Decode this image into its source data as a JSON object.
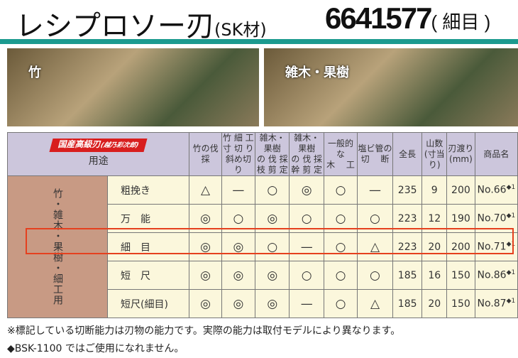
{
  "title": "レシプロソー刃",
  "title_material": "(SK材)",
  "code": "6641577",
  "code_suffix": "( 細目 )",
  "photos": [
    {
      "label": "竹"
    },
    {
      "label": "雑木・果樹"
    }
  ],
  "table": {
    "brand": "国産高級刃",
    "brand_sub": "(越乃彩次郎)",
    "use_label": "用途",
    "headers": [
      "竹の伐採",
      "竹 細 工\n寸 切 り\n斜め切り",
      "雑木・果樹\nの 伐 採\n枝 剪 定",
      "雑木・果樹\nの 伐 採\n幹 剪 定",
      "一般的な\n木　 工",
      "塩ビ管の\n切　 断",
      "全長",
      "山数\n(寸当り)",
      "刃渡り\n(mm)",
      "商品名"
    ],
    "side_label": "竹・雑木・果樹・細工用",
    "rows": [
      {
        "name": "粗挽き",
        "cells": [
          "△",
          "—",
          "○",
          "◎",
          "○",
          "—",
          "235",
          "9",
          "200",
          "No.66"
        ],
        "mark": "◆1"
      },
      {
        "name": "万　能",
        "cells": [
          "◎",
          "○",
          "◎",
          "○",
          "○",
          "○",
          "223",
          "12",
          "190",
          "No.70"
        ],
        "mark": "◆1"
      },
      {
        "name": "細　目",
        "cells": [
          "◎",
          "◎",
          "○",
          "—",
          "○",
          "△",
          "223",
          "20",
          "200",
          "No.71"
        ],
        "mark": "◆1",
        "highlighted": true
      },
      {
        "name": "短　尺",
        "cells": [
          "◎",
          "◎",
          "◎",
          "○",
          "○",
          "○",
          "185",
          "16",
          "150",
          "No.86"
        ],
        "mark": "◆1"
      },
      {
        "name": "短尺(細目)",
        "cells": [
          "◎",
          "◎",
          "◎",
          "—",
          "○",
          "△",
          "185",
          "20",
          "150",
          "No.87"
        ],
        "mark": "◆1"
      }
    ]
  },
  "notes": [
    "※標記している切断能力は刃物の能力です。実際の能力は取付モデルにより異なります。",
    "◆BSK-1100 ではご使用になれません。"
  ],
  "colors": {
    "accent": "#1c9a8f",
    "highlight": "#e5401e",
    "header_bg": "#ccc6dc",
    "cell_bg": "#fbf7dc",
    "side_bg": "#c89a84"
  }
}
